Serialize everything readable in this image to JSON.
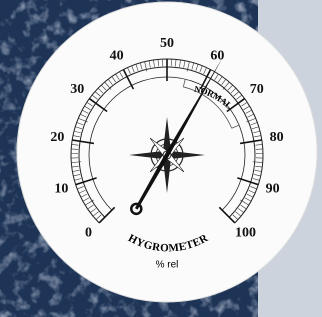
{
  "chart_data": {
    "type": "gauge",
    "title": "HYGROMETER",
    "unit": "% rel",
    "annotation": "NORMAL",
    "value": 61,
    "scale_lim": [
      0,
      100
    ],
    "ticks": [
      0,
      10,
      20,
      30,
      40,
      50,
      60,
      70,
      80,
      90,
      100
    ],
    "normal_range": [
      55,
      75
    ],
    "minor_ticks_per_major": 10,
    "color": "#111111"
  }
}
